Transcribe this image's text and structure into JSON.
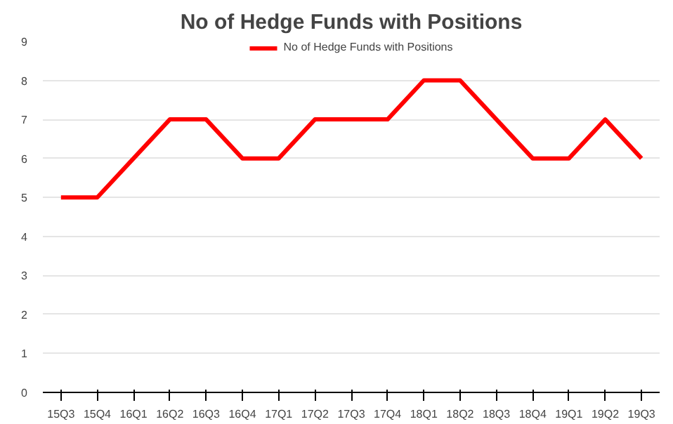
{
  "chart_data": {
    "type": "line",
    "title": "No of Hedge Funds with Positions",
    "categories": [
      "15Q3",
      "15Q4",
      "16Q1",
      "16Q2",
      "16Q3",
      "16Q4",
      "17Q1",
      "17Q2",
      "17Q3",
      "17Q4",
      "18Q1",
      "18Q2",
      "18Q3",
      "18Q4",
      "19Q1",
      "19Q2",
      "19Q3"
    ],
    "series": [
      {
        "name": "No of Hedge Funds with Positions",
        "color": "#ff0000",
        "values": [
          5,
          5,
          6,
          7,
          7,
          6,
          6,
          7,
          7,
          7,
          8,
          8,
          7,
          6,
          6,
          7,
          6
        ]
      }
    ],
    "ylim": [
      0,
      9
    ],
    "yticks": [
      0,
      1,
      2,
      3,
      4,
      5,
      6,
      7,
      8,
      9
    ],
    "grid": "y",
    "legend": "top",
    "marker": "none",
    "line_style": "solid"
  }
}
